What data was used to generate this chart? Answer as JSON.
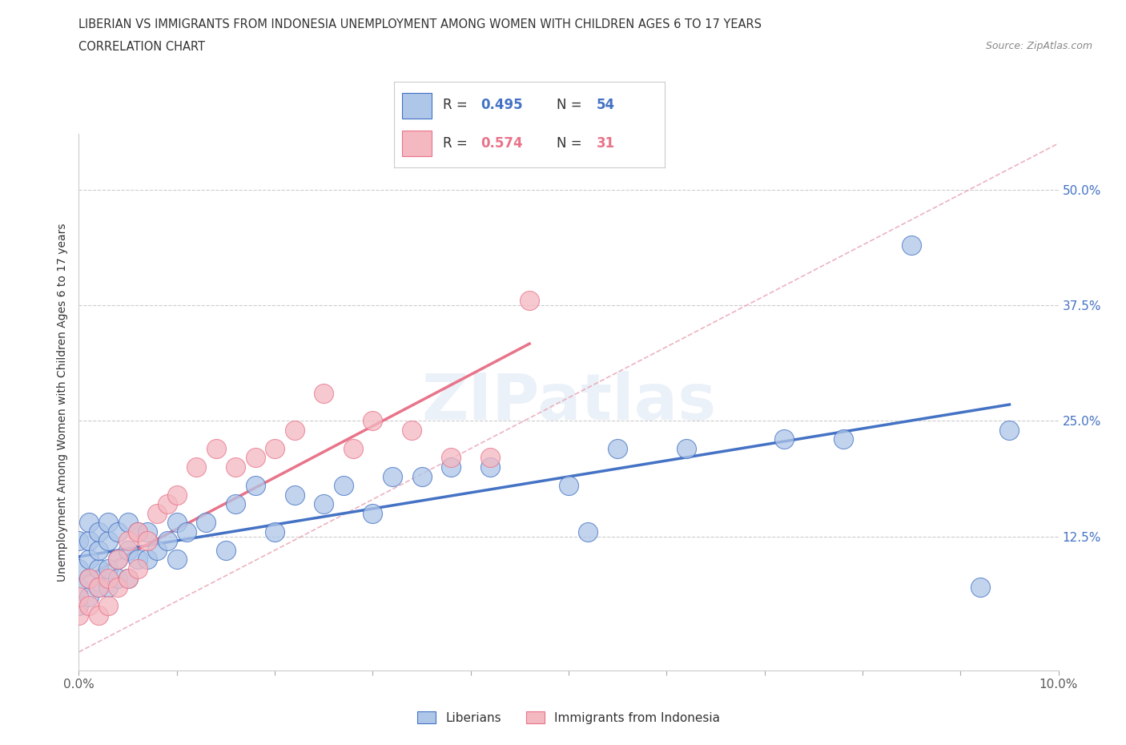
{
  "title_line1": "LIBERIAN VS IMMIGRANTS FROM INDONESIA UNEMPLOYMENT AMONG WOMEN WITH CHILDREN AGES 6 TO 17 YEARS",
  "title_line2": "CORRELATION CHART",
  "source": "Source: ZipAtlas.com",
  "ylabel": "Unemployment Among Women with Children Ages 6 to 17 years",
  "xlim": [
    0.0,
    0.1
  ],
  "ylim": [
    -0.02,
    0.56
  ],
  "ytick_positions": [
    0.0,
    0.125,
    0.25,
    0.375,
    0.5
  ],
  "ytick_labels": [
    "",
    "12.5%",
    "25.0%",
    "37.5%",
    "50.0%"
  ],
  "xtick_positions": [
    0.0,
    0.01,
    0.02,
    0.03,
    0.04,
    0.05,
    0.06,
    0.07,
    0.08,
    0.09,
    0.1
  ],
  "xtick_labels": [
    "0.0%",
    "",
    "",
    "",
    "",
    "",
    "",
    "",
    "",
    "",
    "10.0%"
  ],
  "liberian_R": 0.495,
  "liberian_N": 54,
  "indonesia_R": 0.574,
  "indonesia_N": 31,
  "liberian_color": "#aec6e8",
  "indonesia_color": "#f4b8c1",
  "liberian_line_color": "#4472c4",
  "indonesia_line_color": "#e8748a",
  "diagonal_color": "#e8a0b0",
  "background_color": "#ffffff",
  "liberian_scatter_x": [
    0.0,
    0.0,
    0.0,
    0.0,
    0.001,
    0.001,
    0.001,
    0.001,
    0.001,
    0.002,
    0.002,
    0.002,
    0.002,
    0.003,
    0.003,
    0.003,
    0.003,
    0.004,
    0.004,
    0.004,
    0.005,
    0.005,
    0.005,
    0.006,
    0.006,
    0.007,
    0.007,
    0.008,
    0.009,
    0.01,
    0.01,
    0.011,
    0.013,
    0.015,
    0.016,
    0.018,
    0.02,
    0.022,
    0.025,
    0.027,
    0.03,
    0.032,
    0.035,
    0.038,
    0.042,
    0.05,
    0.052,
    0.055,
    0.062,
    0.072,
    0.078,
    0.085,
    0.092,
    0.095
  ],
  "liberian_scatter_y": [
    0.05,
    0.07,
    0.09,
    0.12,
    0.06,
    0.08,
    0.1,
    0.12,
    0.14,
    0.07,
    0.09,
    0.11,
    0.13,
    0.07,
    0.09,
    0.12,
    0.14,
    0.08,
    0.1,
    0.13,
    0.08,
    0.11,
    0.14,
    0.1,
    0.13,
    0.1,
    0.13,
    0.11,
    0.12,
    0.1,
    0.14,
    0.13,
    0.14,
    0.11,
    0.16,
    0.18,
    0.13,
    0.17,
    0.16,
    0.18,
    0.15,
    0.19,
    0.19,
    0.2,
    0.2,
    0.18,
    0.13,
    0.22,
    0.22,
    0.23,
    0.23,
    0.44,
    0.07,
    0.24
  ],
  "indonesia_scatter_x": [
    0.0,
    0.0,
    0.001,
    0.001,
    0.002,
    0.002,
    0.003,
    0.003,
    0.004,
    0.004,
    0.005,
    0.005,
    0.006,
    0.006,
    0.007,
    0.008,
    0.009,
    0.01,
    0.012,
    0.014,
    0.016,
    0.018,
    0.02,
    0.022,
    0.025,
    0.028,
    0.03,
    0.034,
    0.038,
    0.042,
    0.046
  ],
  "indonesia_scatter_y": [
    0.04,
    0.06,
    0.05,
    0.08,
    0.04,
    0.07,
    0.05,
    0.08,
    0.07,
    0.1,
    0.08,
    0.12,
    0.09,
    0.13,
    0.12,
    0.15,
    0.16,
    0.17,
    0.2,
    0.22,
    0.2,
    0.21,
    0.22,
    0.24,
    0.28,
    0.22,
    0.25,
    0.24,
    0.21,
    0.21,
    0.38
  ]
}
